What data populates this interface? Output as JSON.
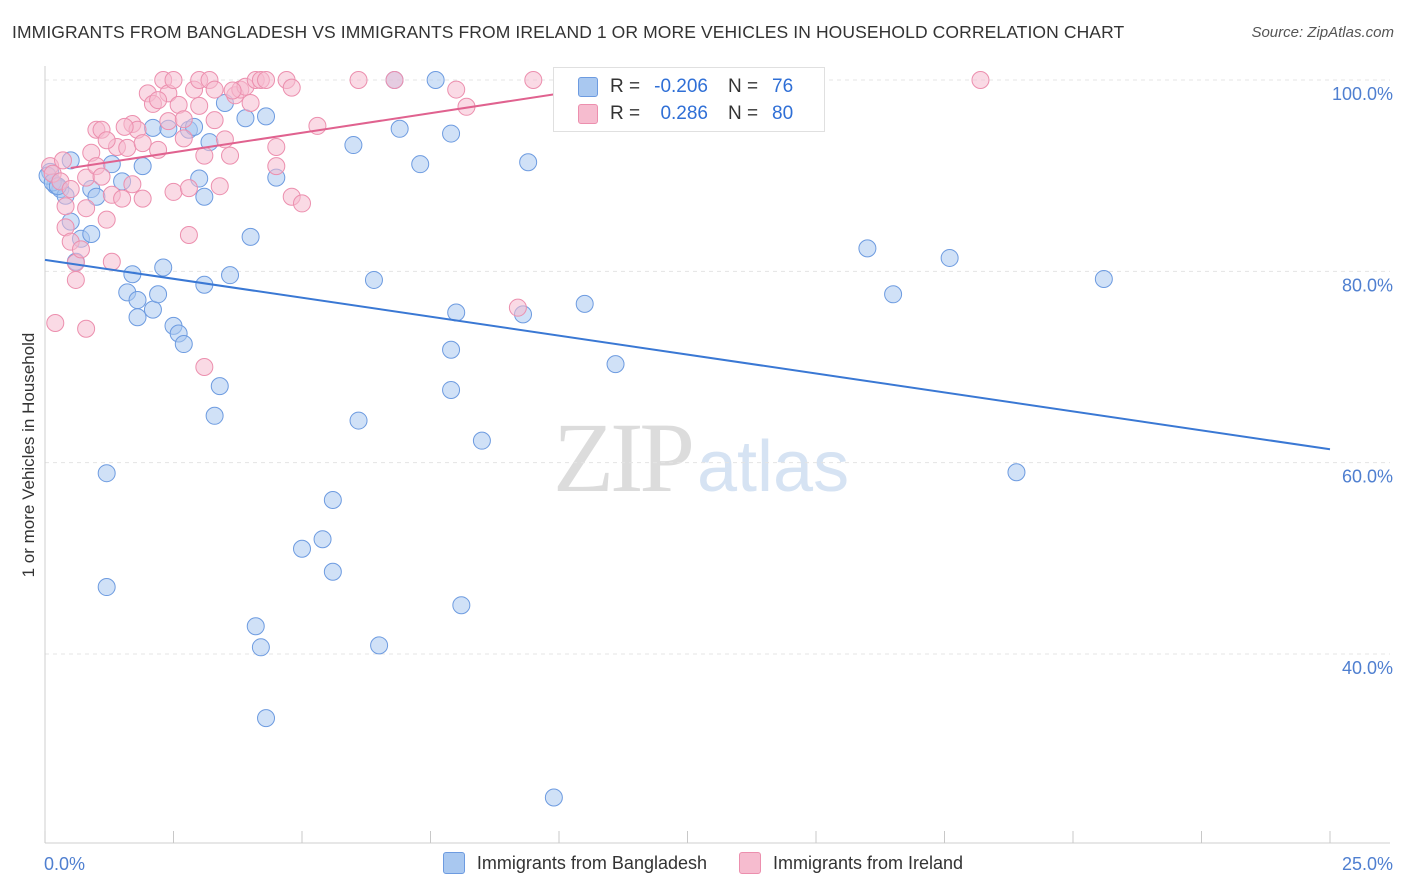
{
  "title": "IMMIGRANTS FROM BANGLADESH VS IMMIGRANTS FROM IRELAND 1 OR MORE VEHICLES IN HOUSEHOLD CORRELATION CHART",
  "source": "Source: ZipAtlas.com",
  "watermark": {
    "zip": "ZIP",
    "atlas": "atlas"
  },
  "legend": {
    "rows": [
      {
        "r_label": "R =",
        "r_value": "-0.206",
        "n_label": "N =",
        "n_value": "76"
      },
      {
        "r_label": "R =",
        "r_value": "0.286",
        "n_label": "N =",
        "n_value": "80"
      }
    ]
  },
  "bottom_legend": [
    "Immigrants from Bangladesh",
    "Immigrants from Ireland"
  ],
  "colors": {
    "blue_fill": "#a9c8f0",
    "blue_stroke": "#6d9be0",
    "blue_line": "#3a78d4",
    "pink_fill": "#f6bccf",
    "pink_stroke": "#ec8fae",
    "pink_line": "#e0628f",
    "tick_text": "#4f7fd0",
    "grid": "#e4e4e4"
  },
  "chart_data": {
    "type": "scatter",
    "title": "IMMIGRANTS FROM BANGLADESH VS IMMIGRANTS FROM IRELAND 1 OR MORE VEHICLES IN HOUSEHOLD CORRELATION CHART",
    "xlabel": "",
    "ylabel": "1 or more Vehicles in Household",
    "xlim": [
      0,
      25
    ],
    "ylim": [
      22,
      102
    ],
    "x_tick_labels": [
      "0.0%",
      "25.0%"
    ],
    "y_ticks": [
      40,
      60,
      80,
      100
    ],
    "y_tick_labels": [
      "40.0%",
      "60.0%",
      "80.0%",
      "100.0%"
    ],
    "grid": true,
    "legend_position": "top-center",
    "series": [
      {
        "name": "Immigrants from Bangladesh",
        "color": "#a9c8f0",
        "r": -0.206,
        "n": 76,
        "trend": {
          "x": [
            0,
            25
          ],
          "y": [
            81.2,
            61.4
          ]
        },
        "points": [
          [
            0.1,
            90.4
          ],
          [
            0.2,
            89.0
          ],
          [
            0.3,
            88.6
          ],
          [
            0.4,
            87.9
          ],
          [
            0.5,
            91.6
          ],
          [
            0.5,
            85.2
          ],
          [
            0.6,
            81.0
          ],
          [
            0.7,
            83.4
          ],
          [
            0.9,
            88.6
          ],
          [
            0.9,
            83.9
          ],
          [
            1.0,
            87.8
          ],
          [
            1.3,
            91.2
          ],
          [
            1.5,
            89.4
          ],
          [
            1.6,
            77.8
          ],
          [
            1.7,
            79.7
          ],
          [
            1.8,
            77.0
          ],
          [
            1.8,
            75.2
          ],
          [
            1.9,
            91.0
          ],
          [
            2.1,
            95.0
          ],
          [
            2.1,
            76.0
          ],
          [
            2.2,
            77.6
          ],
          [
            2.3,
            80.4
          ],
          [
            2.4,
            94.9
          ],
          [
            2.5,
            74.3
          ],
          [
            2.6,
            73.5
          ],
          [
            2.7,
            72.4
          ],
          [
            2.8,
            94.8
          ],
          [
            2.9,
            95.1
          ],
          [
            3.0,
            89.7
          ],
          [
            3.1,
            87.8
          ],
          [
            3.1,
            78.6
          ],
          [
            3.2,
            93.5
          ],
          [
            3.3,
            64.9
          ],
          [
            3.4,
            68.0
          ],
          [
            3.5,
            97.6
          ],
          [
            3.6,
            79.6
          ],
          [
            3.9,
            96.0
          ],
          [
            4.0,
            83.6
          ],
          [
            4.3,
            96.2
          ],
          [
            4.5,
            89.8
          ],
          [
            1.2,
            58.9
          ],
          [
            1.2,
            47.0
          ],
          [
            4.1,
            42.9
          ],
          [
            4.2,
            40.7
          ],
          [
            4.3,
            33.3
          ],
          [
            5.0,
            51.0
          ],
          [
            5.4,
            52.0
          ],
          [
            5.6,
            56.1
          ],
          [
            5.6,
            48.6
          ],
          [
            6.0,
            93.2
          ],
          [
            6.1,
            64.4
          ],
          [
            6.4,
            79.1
          ],
          [
            6.5,
            40.9
          ],
          [
            6.8,
            100.0
          ],
          [
            6.9,
            94.9
          ],
          [
            7.3,
            91.2
          ],
          [
            7.6,
            100.0
          ],
          [
            7.9,
            94.4
          ],
          [
            7.9,
            71.8
          ],
          [
            7.9,
            67.6
          ],
          [
            8.0,
            75.7
          ],
          [
            8.1,
            45.1
          ],
          [
            8.5,
            62.3
          ],
          [
            9.3,
            75.5
          ],
          [
            9.4,
            91.4
          ],
          [
            9.9,
            25.0
          ],
          [
            10.5,
            76.6
          ],
          [
            11.1,
            70.3
          ],
          [
            16.0,
            82.4
          ],
          [
            16.5,
            77.6
          ],
          [
            17.6,
            81.4
          ],
          [
            18.9,
            59.0
          ],
          [
            20.6,
            79.2
          ],
          [
            0.05,
            90.0
          ],
          [
            0.15,
            89.3
          ],
          [
            0.25,
            88.9
          ]
        ]
      },
      {
        "name": "Immigrants from Ireland",
        "color": "#f6bccf",
        "r": 0.286,
        "n": 80,
        "trend": {
          "x": [
            0.5,
            11.0
          ],
          "y": [
            90.8,
            99.4
          ]
        },
        "points": [
          [
            0.1,
            91.0
          ],
          [
            0.15,
            90.2
          ],
          [
            0.2,
            74.6
          ],
          [
            0.3,
            89.4
          ],
          [
            0.4,
            86.8
          ],
          [
            0.4,
            84.6
          ],
          [
            0.5,
            88.6
          ],
          [
            0.5,
            83.1
          ],
          [
            0.6,
            80.9
          ],
          [
            0.6,
            79.1
          ],
          [
            0.7,
            82.3
          ],
          [
            0.8,
            89.8
          ],
          [
            0.8,
            86.6
          ],
          [
            0.8,
            74.0
          ],
          [
            0.9,
            92.4
          ],
          [
            1.0,
            94.8
          ],
          [
            1.0,
            91.0
          ],
          [
            1.1,
            94.8
          ],
          [
            1.1,
            89.9
          ],
          [
            1.2,
            85.4
          ],
          [
            1.3,
            81.0
          ],
          [
            1.3,
            88.0
          ],
          [
            1.4,
            93.0
          ],
          [
            1.5,
            87.6
          ],
          [
            1.6,
            92.9
          ],
          [
            1.7,
            95.4
          ],
          [
            1.7,
            89.1
          ],
          [
            1.8,
            94.8
          ],
          [
            1.9,
            93.4
          ],
          [
            1.9,
            87.6
          ],
          [
            2.0,
            98.6
          ],
          [
            2.1,
            97.5
          ],
          [
            2.2,
            92.7
          ],
          [
            2.3,
            100.0
          ],
          [
            2.4,
            98.6
          ],
          [
            2.4,
            95.7
          ],
          [
            2.5,
            88.3
          ],
          [
            2.5,
            100.0
          ],
          [
            2.6,
            97.4
          ],
          [
            2.7,
            95.9
          ],
          [
            2.7,
            93.9
          ],
          [
            2.8,
            88.7
          ],
          [
            2.8,
            83.8
          ],
          [
            2.9,
            99.0
          ],
          [
            3.0,
            100.0
          ],
          [
            3.0,
            97.3
          ],
          [
            3.1,
            92.1
          ],
          [
            3.1,
            70.0
          ],
          [
            3.2,
            100.0
          ],
          [
            3.3,
            99.0
          ],
          [
            3.3,
            95.8
          ],
          [
            3.4,
            88.9
          ],
          [
            3.5,
            93.8
          ],
          [
            3.6,
            92.1
          ],
          [
            3.7,
            98.4
          ],
          [
            3.8,
            99.0
          ],
          [
            3.9,
            99.3
          ],
          [
            4.0,
            97.6
          ],
          [
            4.1,
            100.0
          ],
          [
            4.2,
            100.0
          ],
          [
            4.3,
            100.0
          ],
          [
            4.5,
            93.0
          ],
          [
            4.5,
            91.0
          ],
          [
            4.7,
            100.0
          ],
          [
            4.8,
            99.2
          ],
          [
            4.8,
            87.8
          ],
          [
            5.0,
            87.1
          ],
          [
            5.3,
            95.2
          ],
          [
            6.1,
            100.0
          ],
          [
            6.8,
            100.0
          ],
          [
            8.0,
            99.0
          ],
          [
            8.2,
            97.2
          ],
          [
            9.2,
            76.2
          ],
          [
            9.5,
            100.0
          ],
          [
            18.2,
            100.0
          ],
          [
            1.2,
            93.7
          ],
          [
            2.2,
            97.9
          ],
          [
            0.35,
            91.6
          ],
          [
            1.55,
            95.1
          ],
          [
            3.65,
            98.9
          ]
        ]
      }
    ]
  }
}
